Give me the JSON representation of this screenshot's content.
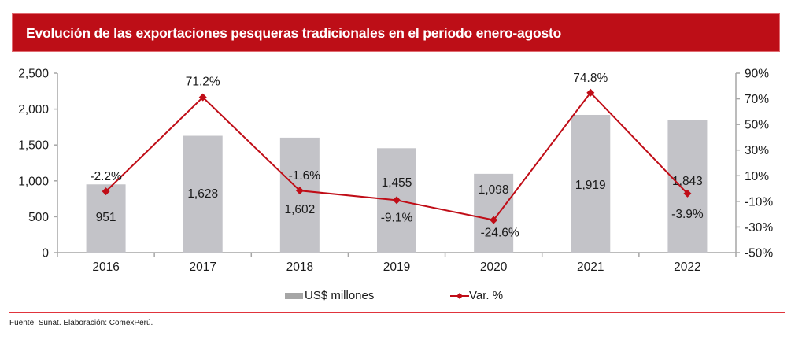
{
  "header": {
    "title": "Evolución de las exportaciones pesqueras tradicionales en el periodo enero-agosto"
  },
  "colors": {
    "title_bg": "#bd0e17",
    "bar": "#c3c3c8",
    "line": "#c00d17",
    "axis": "#a6a6a6",
    "separator": "#e0343c"
  },
  "chart_data": {
    "type": "bar",
    "title": "Evolución de las exportaciones pesqueras tradicionales en el periodo enero-agosto",
    "categories": [
      "2016",
      "2017",
      "2018",
      "2019",
      "2020",
      "2021",
      "2022"
    ],
    "series": [
      {
        "name": "US$ millones",
        "type": "bar",
        "axis": "left",
        "values": [
          951,
          1628,
          1602,
          1455,
          1098,
          1919,
          1843
        ],
        "labels": [
          "951",
          "1,628",
          "1,602",
          "1,455",
          "1,098",
          "1,919",
          "1,843"
        ]
      },
      {
        "name": "Var. %",
        "type": "line",
        "axis": "right",
        "marker": "diamond",
        "values": [
          -2.2,
          71.2,
          -1.6,
          -9.1,
          -24.6,
          74.8,
          -3.9
        ],
        "labels": [
          "-2.2%",
          "71.2%",
          "-1.6%",
          "-9.1%",
          "-24.6%",
          "74.8%",
          "-3.9%"
        ]
      }
    ],
    "y_left": {
      "ylim": [
        0,
        2500
      ],
      "ticks": [
        0,
        500,
        1000,
        1500,
        2000,
        2500
      ],
      "tick_labels": [
        "0",
        "500",
        "1,000",
        "1,500",
        "2,000",
        "2,500"
      ]
    },
    "y_right": {
      "ylim": [
        -50,
        90
      ],
      "ticks": [
        -50,
        -30,
        -10,
        10,
        30,
        50,
        70,
        90
      ],
      "tick_labels": [
        "-50%",
        "-30%",
        "-10%",
        "10%",
        "30%",
        "50%",
        "70%",
        "90%"
      ]
    },
    "xlabel": "",
    "ylabel": "",
    "grid": false,
    "legend": {
      "position": "bottom",
      "entries": [
        "US$ millones",
        "Var. %"
      ]
    }
  },
  "footer": {
    "source": "Fuente: Sunat. Elaboración: ComexPerú."
  }
}
